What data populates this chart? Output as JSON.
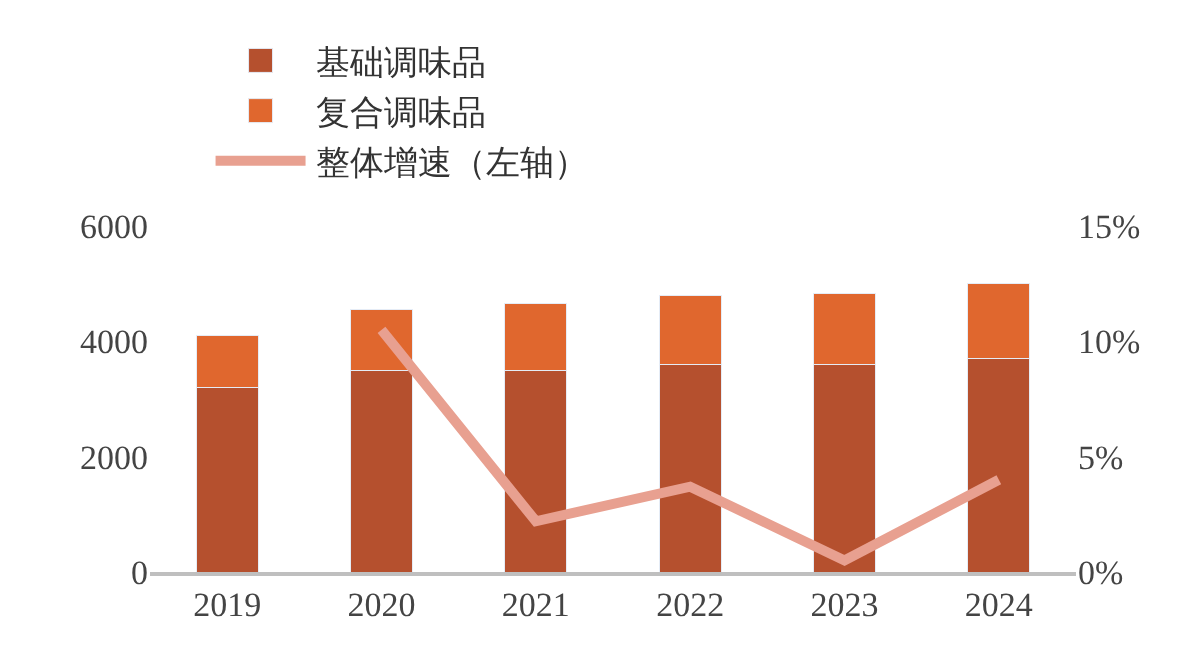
{
  "chart_data": {
    "type": "bar",
    "stacked": true,
    "categories": [
      "2019",
      "2020",
      "2021",
      "2022",
      "2023",
      "2024"
    ],
    "series": [
      {
        "name": "基础调味品",
        "color": "#b5502e",
        "values": [
          3200,
          3500,
          3500,
          3600,
          3600,
          3700
        ]
      },
      {
        "name": "复合调味品",
        "color": "#e0672e",
        "values": [
          900,
          1050,
          1150,
          1200,
          1230,
          1300
        ]
      },
      {
        "name": "整体增速（左轴）",
        "type": "line",
        "axis": "y2",
        "color": "#e8a090",
        "values": [
          null,
          10.5,
          2.2,
          3.7,
          0.5,
          4.0
        ]
      }
    ],
    "ylim": [
      0,
      6000
    ],
    "yticks": [
      0,
      2000,
      4000,
      6000
    ],
    "y2lim": [
      0,
      15
    ],
    "y2ticks": [
      {
        "value": 0,
        "label": "0%"
      },
      {
        "value": 5,
        "label": "5%"
      },
      {
        "value": 10,
        "label": "10%"
      },
      {
        "value": 15,
        "label": "15%"
      }
    ],
    "legend": "top",
    "marker": "none",
    "line_style": "solid"
  }
}
